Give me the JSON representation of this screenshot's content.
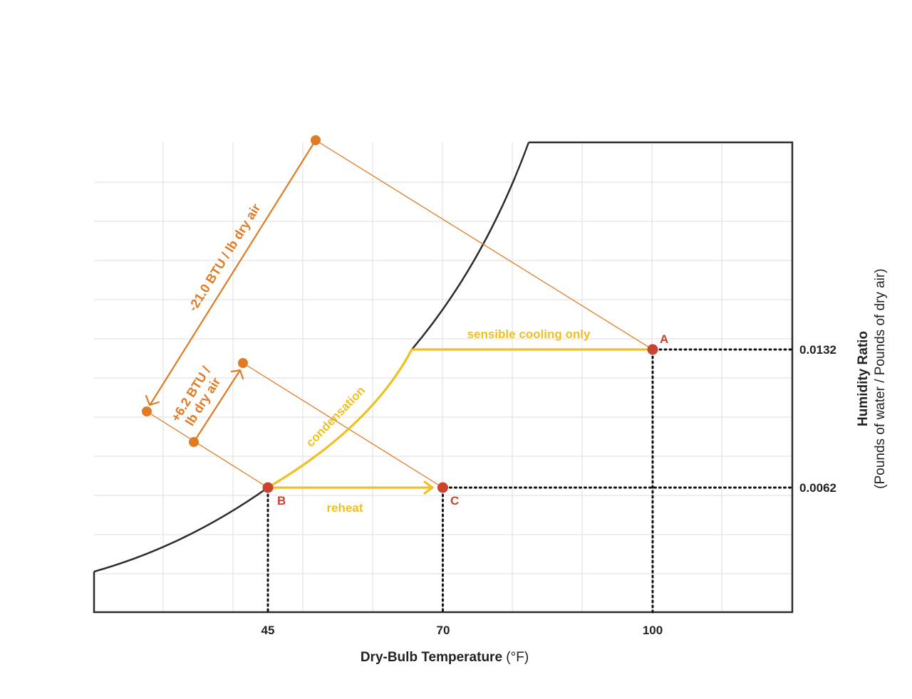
{
  "chart_data": {
    "type": "psychrometric-chart",
    "x_axis": {
      "label_bold": "Dry-Bulb Temperature",
      "label_unit": "(°F)",
      "ticks": [
        45,
        70,
        100
      ],
      "tick_labels": [
        "45",
        "70",
        "100"
      ]
    },
    "y_axis": {
      "label_bold": "Humidity Ratio",
      "label_sub": "(Pounds of water / Pounds of dry air)",
      "ticks": [
        0.0062,
        0.0132
      ],
      "tick_labels": [
        "0.0062",
        "0.0132"
      ]
    },
    "grid": true,
    "points": [
      {
        "id": "A",
        "label": "A",
        "dry_bulb": 100,
        "humidity_ratio": 0.0132
      },
      {
        "id": "B",
        "label": "B",
        "dry_bulb": 45,
        "humidity_ratio": 0.0062
      },
      {
        "id": "C",
        "label": "C",
        "dry_bulb": 70,
        "humidity_ratio": 0.0062
      }
    ],
    "processes": [
      {
        "id": "sensible",
        "label": "sensible cooling only",
        "from": "A"
      },
      {
        "id": "condensation",
        "label": "condensation",
        "to": "B"
      },
      {
        "id": "reheat",
        "label": "reheat",
        "from": "B",
        "to": "C"
      }
    ],
    "enthalpy_differences": [
      {
        "id": "cooling",
        "lines": [
          "-21.0 BTU / lb dry air"
        ],
        "value": -21.0,
        "unit": "BTU / lb dry air"
      },
      {
        "id": "reheat",
        "lines": [
          "+6.2 BTU /",
          "lb dry air"
        ],
        "value": 6.2,
        "unit": "BTU / lb dry air"
      }
    ],
    "colors": {
      "saturation_curve": "#2b2b2b",
      "process": "#f0c020",
      "enthalpy": "#e07b24",
      "state_point": "#c8442e",
      "grid": "#dddddd",
      "guides": "#111111"
    }
  }
}
